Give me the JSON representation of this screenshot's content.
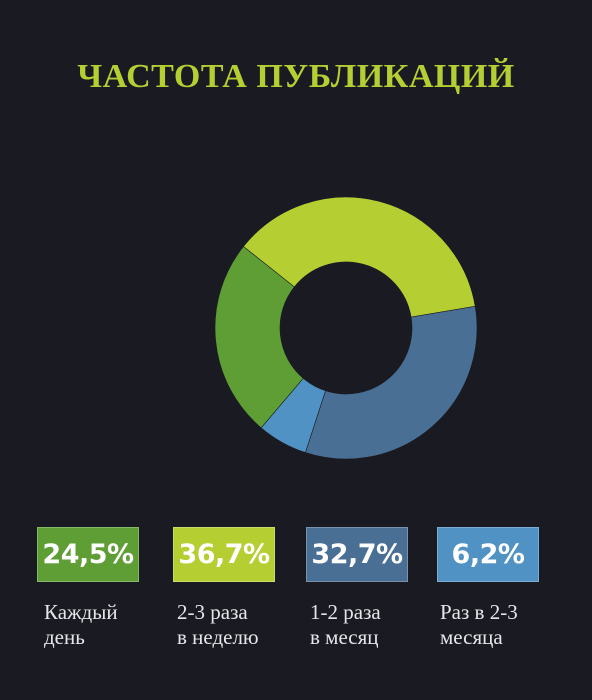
{
  "title": "ЧАСТОТА ПУБЛИКАЦИЙ",
  "chart_data": {
    "type": "pie",
    "variant": "donut",
    "title": "ЧАСТОТА ПУБЛИКАЦИЙ",
    "slices": [
      {
        "label": "Каждый день",
        "value": 24.5,
        "display": "24,5%",
        "color": "#5e9e35"
      },
      {
        "label": "2-3 раза в неделю",
        "value": 36.7,
        "display": "36,7%",
        "color": "#b5cf33"
      },
      {
        "label": "1-2 раза в месяц",
        "value": 32.7,
        "display": "32,7%",
        "color": "#4a6f95"
      },
      {
        "label": "Раз в 2-3 месяца",
        "value": 6.2,
        "display": "6,2%",
        "color": "#5192c4"
      }
    ],
    "legend_placement": "bottom"
  },
  "legend": [
    {
      "value": "24,5%",
      "label": "Каждый\nдень"
    },
    {
      "value": "36,7%",
      "label": "2-3 раза\nв неделю"
    },
    {
      "value": "32,7%",
      "label": "1-2 раза\nв месяц"
    },
    {
      "value": "6,2%",
      "label": "Раз в 2-3\nмесяца"
    }
  ],
  "colors": {
    "background": "#1a1a22",
    "accent": "#b5cf33"
  }
}
